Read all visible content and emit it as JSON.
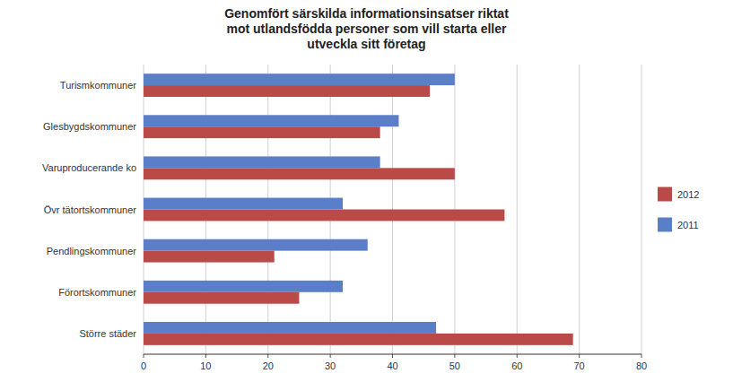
{
  "chart_data": {
    "type": "bar",
    "orientation": "horizontal",
    "title": "Genomfört särskilda informationsinsatser riktat\nmot utlandsfödda personer som vill starta eller\nutveckla sitt företag",
    "categories": [
      "Turismkommuner",
      "Glesbygdskommuner",
      "Varuproducerande ko",
      "Övr tätortskommuner",
      "Pendlingskommuner",
      "Förortskommuner",
      "Större städer"
    ],
    "series": [
      {
        "name": "2012",
        "color": "#B94A48",
        "values": [
          46,
          38,
          50,
          58,
          21,
          25,
          69
        ]
      },
      {
        "name": "2011",
        "color": "#5B7EC9",
        "values": [
          50,
          41,
          38,
          32,
          36,
          32,
          47
        ]
      }
    ],
    "xlim": [
      0,
      80
    ],
    "xticks": [
      0,
      10,
      20,
      30,
      40,
      50,
      60,
      70,
      80
    ],
    "grid": true,
    "legend": "right"
  }
}
